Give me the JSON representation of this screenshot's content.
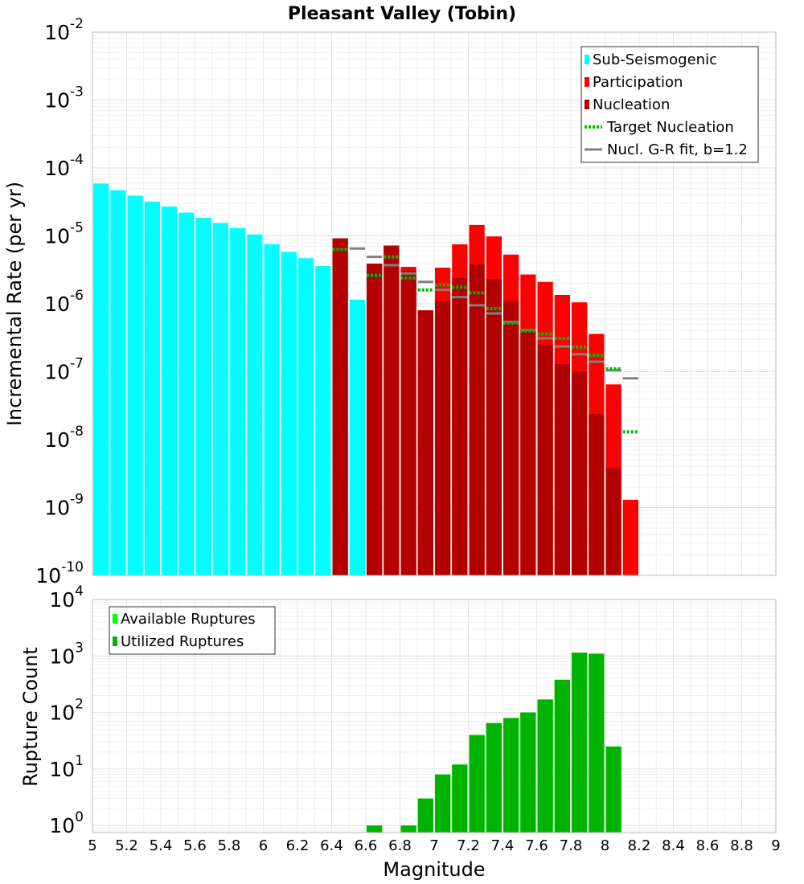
{
  "chart_data": [
    {
      "type": "bar",
      "title": "Pleasant Valley (Tobin)",
      "xlabel": "",
      "ylabel": "Incremental Rate (per yr)",
      "xlim": [
        5,
        9
      ],
      "ylim": [
        1e-10,
        0.01
      ],
      "yscale": "log",
      "ytick_exponents": [
        -10,
        -9,
        -8,
        -7,
        -6,
        -5,
        -4,
        -3,
        -2
      ],
      "grid": true,
      "legend_position": "top-right",
      "bin_width": 0.1,
      "series": [
        {
          "name": "Sub-Seismogenic",
          "color": "#00ffff",
          "x": [
            5.05,
            5.15,
            5.25,
            5.35,
            5.45,
            5.55,
            5.65,
            5.75,
            5.85,
            5.95,
            6.05,
            6.15,
            6.25,
            6.35,
            6.55
          ],
          "values": [
            5.9e-05,
            4.7e-05,
            3.9e-05,
            3.2e-05,
            2.7e-05,
            2.2e-05,
            1.85e-05,
            1.55e-05,
            1.3e-05,
            1.05e-05,
            7.5e-06,
            5.8e-06,
            4.7e-06,
            3.6e-06,
            1.15e-06
          ]
        },
        {
          "name": "Participation",
          "color": "#ff0000",
          "x": [
            6.45,
            6.65,
            6.75,
            6.85,
            6.95,
            7.05,
            7.15,
            7.25,
            7.35,
            7.45,
            7.55,
            7.65,
            7.75,
            7.85,
            7.95,
            8.05,
            8.15
          ],
          "values": [
            9.2e-06,
            3.9e-06,
            7.2e-06,
            3.5e-06,
            8e-07,
            3.4e-06,
            7.5e-06,
            1.45e-05,
            9.8e-06,
            5.3e-06,
            2.7e-06,
            2.1e-06,
            1.35e-06,
            1.05e-06,
            3.6e-07,
            6.5e-08,
            1.3e-09
          ]
        },
        {
          "name": "Nucleation",
          "color": "#b30000",
          "x": [
            6.45,
            6.65,
            6.75,
            6.85,
            6.95,
            7.05,
            7.15,
            7.25,
            7.35,
            7.45,
            7.55,
            7.65,
            7.75,
            7.85,
            7.95,
            8.05
          ],
          "values": [
            9.2e-06,
            3.9e-06,
            7.2e-06,
            3.1e-06,
            8e-07,
            1.1e-06,
            2.4e-06,
            3.8e-06,
            2.3e-06,
            1.1e-06,
            4.1e-07,
            2.5e-07,
            1.3e-07,
            1e-07,
            2.4e-08,
            3.8e-09
          ]
        },
        {
          "name": "Target Nucleation",
          "color": "#00bb00",
          "style": "dotted",
          "x": [
            6.45,
            6.65,
            6.75,
            6.85,
            6.95,
            7.05,
            7.15,
            7.25,
            7.35,
            7.45,
            7.55,
            7.65,
            7.75,
            7.85,
            7.95,
            8.05,
            8.15
          ],
          "values": [
            6.3e-06,
            2.6e-06,
            4.9e-06,
            2.4e-06,
            1.6e-06,
            1.9e-06,
            1.75e-06,
            1.45e-06,
            8.5e-07,
            5.2e-07,
            4e-07,
            3.6e-07,
            3.1e-07,
            2.3e-07,
            1.75e-07,
            1.1e-07,
            1.3e-08
          ]
        },
        {
          "name": "Nucl. G-R fit, b=1.2",
          "color": "#808080",
          "style": "segment",
          "x": [
            6.55,
            6.65,
            6.75,
            6.85,
            6.95,
            7.05,
            7.15,
            7.25,
            7.35,
            7.45,
            7.55,
            7.65,
            7.75,
            7.85,
            7.95,
            8.05,
            8.15
          ],
          "values": [
            6.5e-06,
            4.9e-06,
            3.7e-06,
            2.8e-06,
            2.1e-06,
            1.6e-06,
            1.25e-06,
            9.5e-07,
            7.2e-07,
            5.4e-07,
            4.1e-07,
            3.1e-07,
            2.35e-07,
            1.8e-07,
            1.4e-07,
            1.05e-07,
            8e-08
          ]
        }
      ]
    },
    {
      "type": "bar",
      "title": "",
      "xlabel": "Magnitude",
      "ylabel": "Rupture Count",
      "xlim": [
        5,
        9
      ],
      "ylim": [
        0.75,
        10000
      ],
      "yscale": "log",
      "ytick_exponents": [
        0,
        1,
        2,
        3,
        4
      ],
      "xticks": [
        "5",
        "5.2",
        "5.4",
        "5.6",
        "5.8",
        "6",
        "6.2",
        "6.4",
        "6.6",
        "6.8",
        "7",
        "7.2",
        "7.4",
        "7.6",
        "7.8",
        "8",
        "8.2",
        "8.4",
        "8.6",
        "8.8",
        "9"
      ],
      "grid": true,
      "legend_position": "top-left",
      "bin_width": 0.1,
      "series": [
        {
          "name": "Available Ruptures",
          "color": "#00ff00",
          "x": [
            6.65,
            6.85,
            6.95,
            7.05,
            7.15,
            7.25,
            7.35,
            7.45,
            7.55,
            7.65,
            7.75,
            7.85,
            7.95,
            8.05
          ],
          "values": [
            1,
            1,
            3,
            8,
            12,
            40,
            65,
            80,
            100,
            170,
            380,
            1150,
            1100,
            25
          ]
        },
        {
          "name": "Utilized Ruptures",
          "color": "#00b300",
          "x": [
            6.65,
            6.85,
            6.95,
            7.05,
            7.15,
            7.25,
            7.35,
            7.45,
            7.55,
            7.65,
            7.75,
            7.85,
            7.95,
            8.05
          ],
          "values": [
            1,
            1,
            3,
            8,
            12,
            40,
            65,
            80,
            100,
            170,
            380,
            1150,
            1100,
            25
          ]
        }
      ]
    }
  ]
}
